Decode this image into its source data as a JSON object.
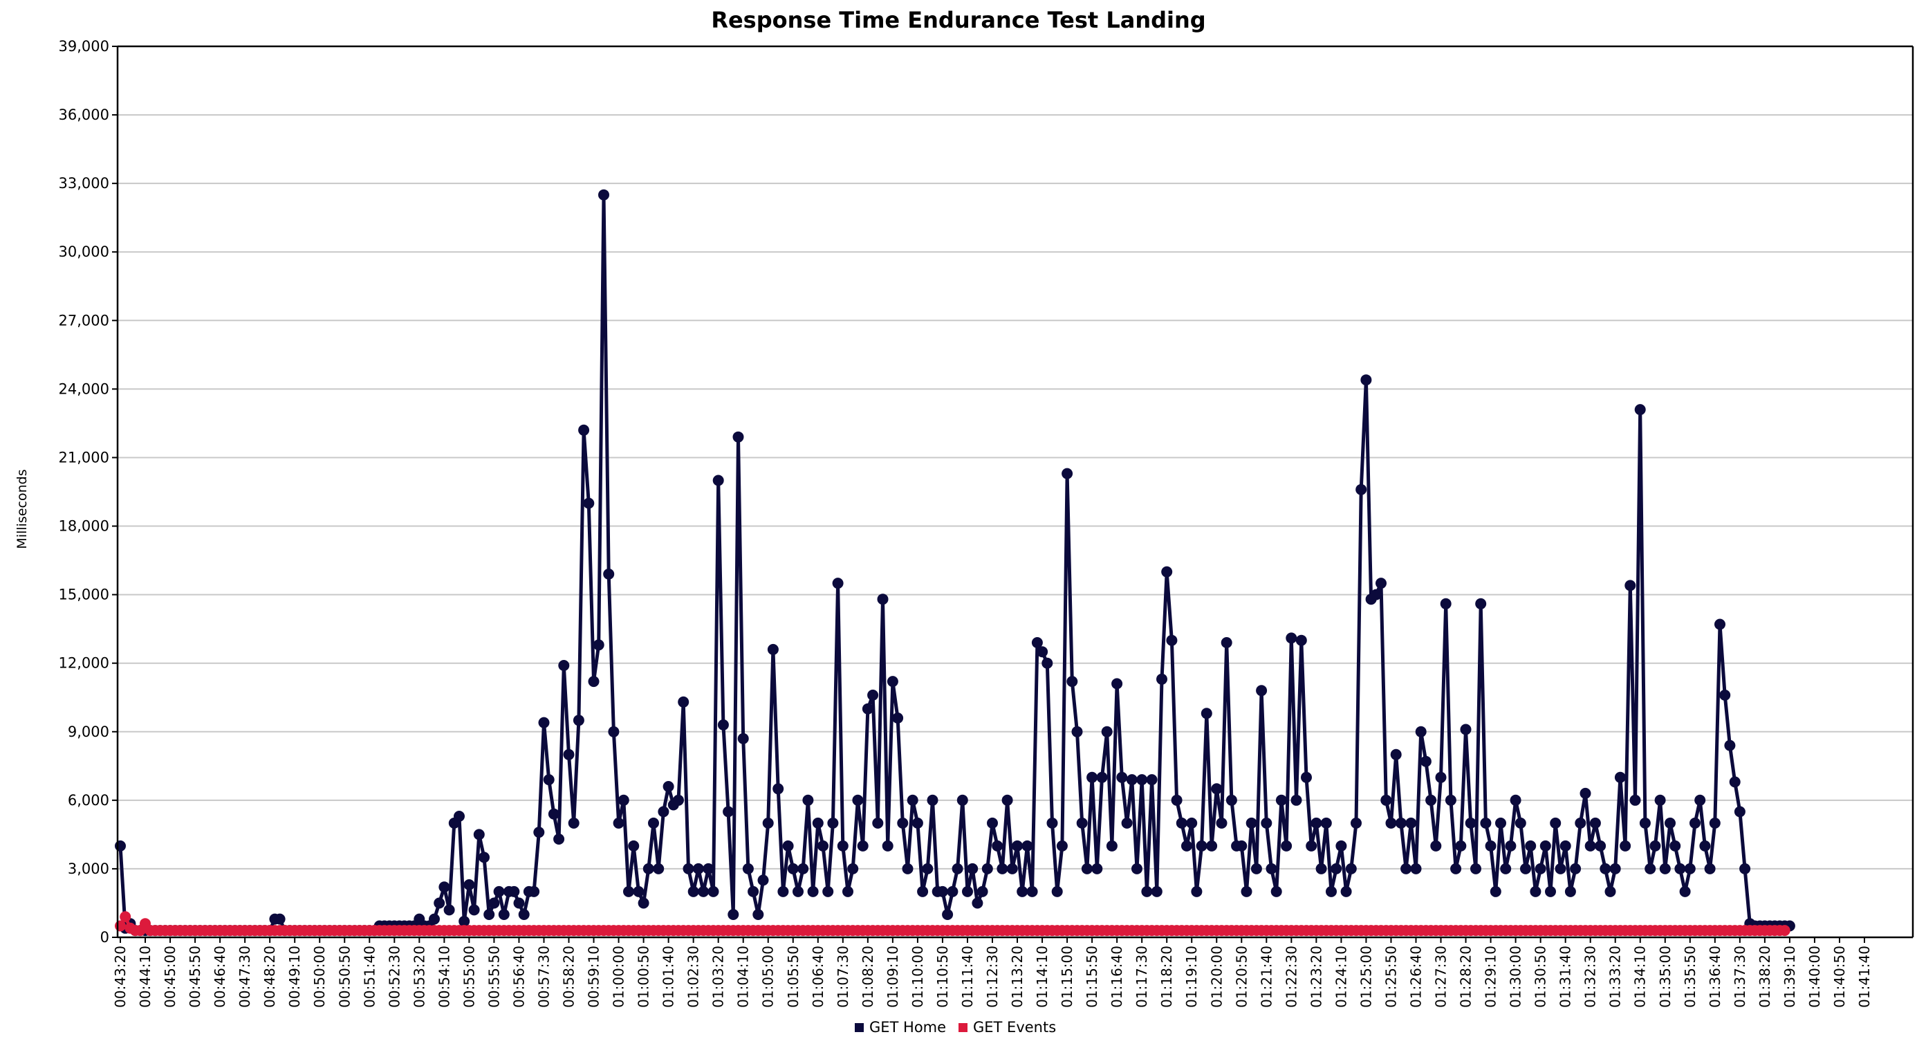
{
  "chart_data": {
    "type": "line",
    "title": "Response Time Endurance Test Landing",
    "xlabel": "",
    "ylabel": "Milliseconds",
    "ylim": [
      0,
      39000
    ],
    "yticks": [
      0,
      3000,
      6000,
      9000,
      12000,
      15000,
      18000,
      21000,
      24000,
      27000,
      30000,
      33000,
      36000,
      39000
    ],
    "ytick_labels": [
      "0",
      "3,000",
      "6,000",
      "9,000",
      "12,000",
      "15,000",
      "18,000",
      "21,000",
      "24,000",
      "27,000",
      "30,000",
      "33,000",
      "36,000",
      "39,000"
    ],
    "xtick_labels": [
      "00:43:20",
      "00:44:10",
      "00:45:00",
      "00:45:50",
      "00:46:40",
      "00:47:30",
      "00:48:20",
      "00:49:10",
      "00:50:00",
      "00:50:50",
      "00:51:40",
      "00:52:30",
      "00:53:20",
      "00:54:10",
      "00:55:00",
      "00:55:50",
      "00:56:40",
      "00:57:30",
      "00:58:20",
      "00:59:10",
      "01:00:00",
      "01:00:50",
      "01:01:40",
      "01:02:30",
      "01:03:20",
      "01:04:10",
      "01:05:00",
      "01:05:50",
      "01:06:40",
      "01:07:30",
      "01:08:20",
      "01:09:10",
      "01:10:00",
      "01:10:50",
      "01:11:40",
      "01:12:30",
      "01:13:20",
      "01:14:10",
      "01:15:00",
      "01:15:50",
      "01:16:40",
      "01:17:30",
      "01:18:20",
      "01:19:10",
      "01:20:00",
      "01:20:50",
      "01:21:40",
      "01:22:30",
      "01:23:20",
      "01:24:10",
      "01:25:00",
      "01:25:50",
      "01:26:40",
      "01:27:30",
      "01:28:20",
      "01:29:10",
      "01:30:00",
      "01:30:50",
      "01:31:40",
      "01:32:30",
      "01:33:20",
      "01:34:10",
      "01:35:00",
      "01:35:50",
      "01:36:40",
      "01:37:30",
      "01:38:20",
      "01:39:10",
      "01:40:00",
      "01:40:50",
      "01:41:40"
    ],
    "x_start": "00:43:20",
    "x_step_seconds": 10,
    "grid": "horizontal",
    "legend_position": "bottom",
    "series": [
      {
        "name": "GET Home",
        "color": "#0b0a3c",
        "values": [
          4000,
          400,
          600,
          300,
          300,
          300,
          300,
          300,
          300,
          300,
          300,
          300,
          300,
          300,
          300,
          300,
          300,
          300,
          300,
          300,
          300,
          300,
          300,
          300,
          300,
          300,
          300,
          300,
          300,
          300,
          300,
          800,
          800,
          300,
          300,
          300,
          300,
          300,
          300,
          300,
          300,
          300,
          300,
          300,
          300,
          300,
          300,
          300,
          300,
          300,
          300,
          300,
          500,
          500,
          500,
          500,
          500,
          500,
          500,
          500,
          800,
          500,
          500,
          800,
          1500,
          2200,
          1200,
          5000,
          5300,
          700,
          2300,
          1200,
          4500,
          3500,
          1000,
          1500,
          2000,
          1000,
          2000,
          2000,
          1500,
          1000,
          2000,
          2000,
          4600,
          9400,
          6900,
          5400,
          4300,
          11900,
          8000,
          5000,
          9500,
          22200,
          19000,
          11200,
          12800,
          32500,
          15900,
          9000,
          5000,
          6000,
          2000,
          4000,
          2000,
          1500,
          3000,
          5000,
          3000,
          5500,
          6600,
          5800,
          6000,
          10300,
          3000,
          2000,
          3000,
          2000,
          3000,
          2000,
          20000,
          9300,
          5500,
          1000,
          21900,
          8700,
          3000,
          2000,
          1000,
          2500,
          5000,
          12600,
          6500,
          2000,
          4000,
          3000,
          2000,
          3000,
          6000,
          2000,
          5000,
          4000,
          2000,
          5000,
          15500,
          4000,
          2000,
          3000,
          6000,
          4000,
          10000,
          10600,
          5000,
          14800,
          4000,
          11200,
          9600,
          5000,
          3000,
          6000,
          5000,
          2000,
          3000,
          6000,
          2000,
          2000,
          1000,
          2000,
          3000,
          6000,
          2000,
          3000,
          1500,
          2000,
          3000,
          5000,
          4000,
          3000,
          6000,
          3000,
          4000,
          2000,
          4000,
          2000,
          12900,
          12500,
          12000,
          5000,
          2000,
          4000,
          20300,
          11200,
          9000,
          5000,
          3000,
          7000,
          3000,
          7000,
          9000,
          4000,
          11100,
          7000,
          5000,
          6900,
          3000,
          6900,
          2000,
          6900,
          2000,
          11300,
          16000,
          13000,
          6000,
          5000,
          4000,
          5000,
          2000,
          4000,
          9800,
          4000,
          6500,
          5000,
          12900,
          6000,
          4000,
          4000,
          2000,
          5000,
          3000,
          10800,
          5000,
          3000,
          2000,
          6000,
          4000,
          13100,
          6000,
          13000,
          7000,
          4000,
          5000,
          3000,
          5000,
          2000,
          3000,
          4000,
          2000,
          3000,
          5000,
          19600,
          24400,
          14800,
          15000,
          15500,
          6000,
          5000,
          8000,
          5000,
          3000,
          5000,
          3000,
          9000,
          7700,
          6000,
          4000,
          7000,
          14600,
          6000,
          3000,
          4000,
          9100,
          5000,
          3000,
          14600,
          5000,
          4000,
          2000,
          5000,
          3000,
          4000,
          6000,
          5000,
          3000,
          4000,
          2000,
          3000,
          4000,
          2000,
          5000,
          3000,
          4000,
          2000,
          3000,
          5000,
          6300,
          4000,
          5000,
          4000,
          3000,
          2000,
          3000,
          7000,
          4000,
          15400,
          6000,
          23100,
          5000,
          3000,
          4000,
          6000,
          3000,
          5000,
          4000,
          3000,
          2000,
          3000,
          5000,
          6000,
          4000,
          3000,
          5000,
          13700,
          10600,
          8400,
          6800,
          5500,
          3000,
          600,
          500,
          500,
          500,
          500,
          500,
          500,
          500,
          500
        ]
      },
      {
        "name": "GET Events",
        "color": "#dc1a3c",
        "values": [
          500,
          900,
          400,
          300,
          300,
          600,
          300,
          300,
          300,
          300,
          300,
          300,
          300,
          300,
          300,
          300,
          300,
          300,
          300,
          300,
          300,
          300,
          300,
          300,
          300,
          300,
          300,
          300,
          300,
          300,
          300,
          300,
          300,
          300,
          300,
          300,
          300,
          300,
          300,
          300,
          300,
          300,
          300,
          300,
          300,
          300,
          300,
          300,
          300,
          300,
          300,
          300,
          300,
          300,
          300,
          300,
          300,
          300,
          300,
          300,
          300,
          300,
          300,
          300,
          300,
          300,
          300,
          300,
          300,
          300,
          300,
          300,
          300,
          300,
          300,
          300,
          300,
          300,
          300,
          300,
          300,
          300,
          300,
          300,
          300,
          300,
          300,
          300,
          300,
          300,
          300,
          300,
          300,
          300,
          300,
          300,
          300,
          300,
          300,
          300,
          300,
          300,
          300,
          300,
          300,
          300,
          300,
          300,
          300,
          300,
          300,
          300,
          300,
          300,
          300,
          300,
          300,
          300,
          300,
          300,
          300,
          300,
          300,
          300,
          300,
          300,
          300,
          300,
          300,
          300,
          300,
          300,
          300,
          300,
          300,
          300,
          300,
          300,
          300,
          300,
          300,
          300,
          300,
          300,
          300,
          300,
          300,
          300,
          300,
          300,
          300,
          300,
          300,
          300,
          300,
          300,
          300,
          300,
          300,
          300,
          300,
          300,
          300,
          300,
          300,
          300,
          300,
          300,
          300,
          300,
          300,
          300,
          300,
          300,
          300,
          300,
          300,
          300,
          300,
          300,
          300,
          300,
          300,
          300,
          300,
          300,
          300,
          300,
          300,
          300,
          300,
          300,
          300,
          300,
          300,
          300,
          300,
          300,
          300,
          300,
          300,
          300,
          300,
          300,
          300,
          300,
          300,
          300,
          300,
          300,
          300,
          300,
          300,
          300,
          300,
          300,
          300,
          300,
          300,
          300,
          300,
          300,
          300,
          300,
          300,
          300,
          300,
          300,
          300,
          300,
          300,
          300,
          300,
          300,
          300,
          300,
          300,
          300,
          300,
          300,
          300,
          300,
          300,
          300,
          300,
          300,
          300,
          300,
          300,
          300,
          300,
          300,
          300,
          300,
          300,
          300,
          300,
          300,
          300,
          300,
          300,
          300,
          300,
          300,
          300,
          300,
          300,
          300,
          300,
          300,
          300,
          300,
          300,
          300,
          300,
          300,
          300,
          300,
          300,
          300,
          300,
          300,
          300,
          300,
          300,
          300,
          300,
          300,
          300,
          300,
          300,
          300,
          300,
          300,
          300,
          300,
          300,
          300,
          300,
          300,
          300,
          300,
          300,
          300,
          300,
          300,
          300,
          300,
          300,
          300,
          300,
          300,
          300,
          300,
          300,
          300,
          300,
          300,
          300,
          300,
          300,
          300,
          300,
          300,
          300,
          300,
          300,
          300,
          300,
          300,
          300,
          300,
          300,
          300,
          300
        ]
      }
    ]
  }
}
